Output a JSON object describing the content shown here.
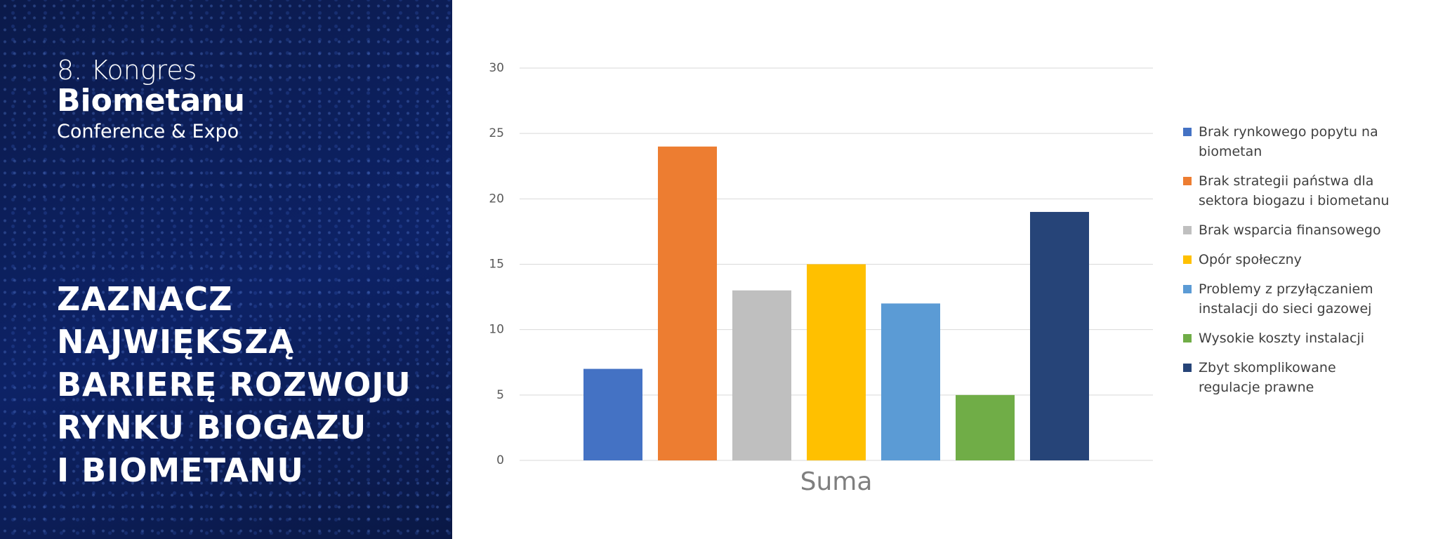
{
  "header": {
    "line1": "8. Kongres",
    "line2": "Biometanu",
    "line3": "Conference & Expo"
  },
  "question": {
    "lines": [
      "ZAZNACZ",
      "NAJWIĘKSZĄ",
      "BARIERĘ ROZWOJU",
      "RYNKU BIOGAZU",
      "I BIOMETANU"
    ]
  },
  "chart_data": {
    "type": "bar",
    "categories": [
      "Suma"
    ],
    "series": [
      {
        "name": "Brak rynkowego popytu na biometan",
        "color": "#4472c4",
        "values": [
          7
        ]
      },
      {
        "name": "Brak strategii państwa dla sektora biogazu i biometanu",
        "color": "#ed7d31",
        "values": [
          24
        ]
      },
      {
        "name": "Brak wsparcia finansowego",
        "color": "#bfbfbf",
        "values": [
          13
        ]
      },
      {
        "name": "Opór społeczny",
        "color": "#ffc000",
        "values": [
          15
        ]
      },
      {
        "name": "Problemy z przyłączaniem instalacji do sieci gazowej",
        "color": "#5b9bd5",
        "values": [
          12
        ]
      },
      {
        "name": "Wysokie koszty instalacji",
        "color": "#70ad47",
        "values": [
          5
        ]
      },
      {
        "name": "Zbyt skomplikowane regulacje prawne",
        "color": "#264478",
        "values": [
          19
        ]
      }
    ],
    "ylim": [
      0,
      30
    ],
    "yticks": [
      0,
      5,
      10,
      15,
      20,
      25,
      30
    ],
    "grid": true,
    "legend": "right"
  }
}
